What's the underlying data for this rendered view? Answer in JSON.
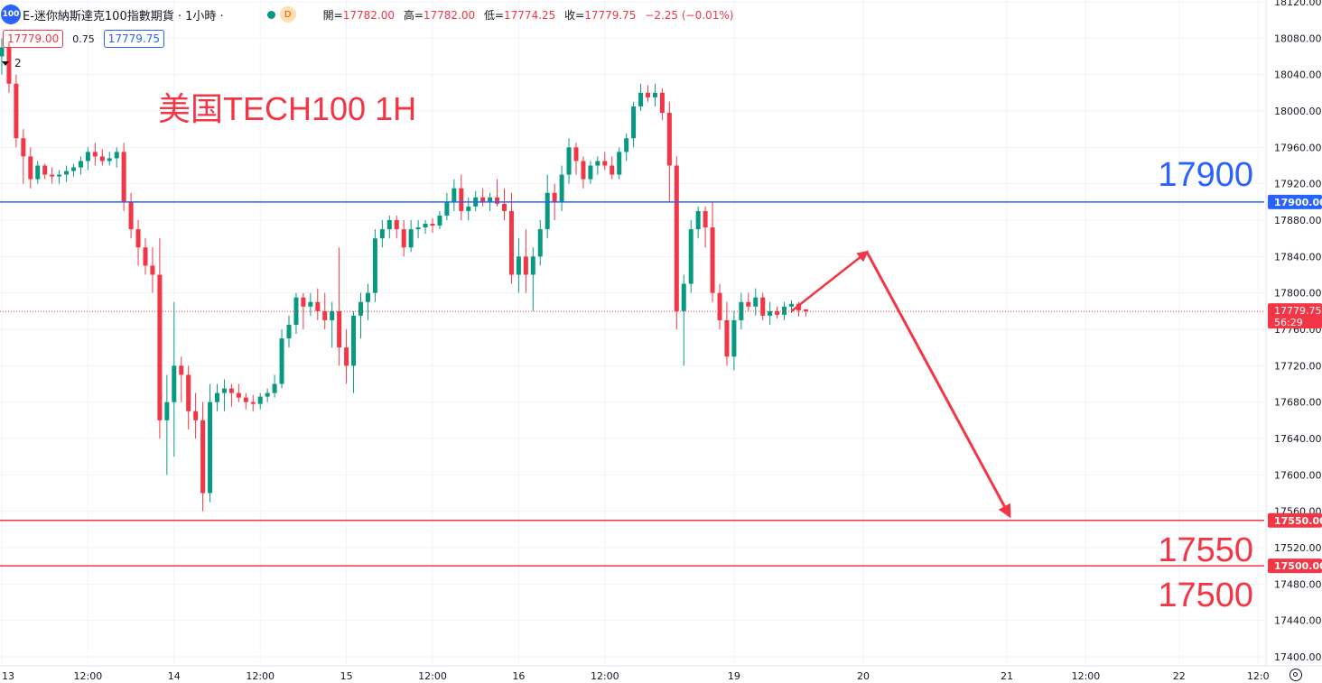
{
  "header": {
    "logo_text": "100",
    "title": "E-迷你納斯達克100指數期貨 · 1小時 ·",
    "status_badge": "D",
    "ohlc": {
      "open_label": "開=",
      "open": "17782.00",
      "high_label": "高=",
      "high": "17782.00",
      "low_label": "低=",
      "low": "17774.25",
      "close_label": "收=",
      "close": "17779.75",
      "change": "−2.25 (−0.01%)"
    }
  },
  "quote": {
    "bid": "17779.00",
    "spread": "0.75",
    "ask": "17779.75"
  },
  "indicators": {
    "count": "2"
  },
  "colors": {
    "up": "#089981",
    "down": "#f23645",
    "blue": "#2962ff",
    "red": "#f23645",
    "grid": "#f0f3fa"
  },
  "chart_data": {
    "type": "candlestick",
    "title": "美国TECH100 1H",
    "timeframe": "1H",
    "ylim": [
      17400,
      18120
    ],
    "y_ticks": [
      17400,
      17440,
      17480,
      17520,
      17560,
      17600,
      17640,
      17680,
      17720,
      17760,
      17800,
      17840,
      17880,
      17920,
      17960,
      18000,
      18040,
      18080,
      18120
    ],
    "y_tick_labels": [
      "17400.00",
      "17440.00",
      "17480.00",
      "17520.00",
      "17560.00",
      "17600.00",
      "17640.00",
      "17680.00",
      "17720.00",
      "17760.00",
      "17800.00",
      "17840.00",
      "17880.00",
      "17920.00",
      "17960.00",
      "18000.00",
      "18040.00",
      "18080.00",
      "18120.00"
    ],
    "x_labels": [
      {
        "label": "13",
        "bar": 0
      },
      {
        "label": "12:00",
        "bar": 12
      },
      {
        "label": "14",
        "bar": 24
      },
      {
        "label": "12:00",
        "bar": 36
      },
      {
        "label": "15",
        "bar": 48
      },
      {
        "label": "12:00",
        "bar": 60
      },
      {
        "label": "16",
        "bar": 72
      },
      {
        "label": "12:00",
        "bar": 84
      },
      {
        "label": "19",
        "bar": 102
      },
      {
        "label": "20",
        "bar": 120
      },
      {
        "label": "21",
        "bar": 140
      },
      {
        "label": "12:00",
        "bar": 151
      },
      {
        "label": "22",
        "bar": 164
      },
      {
        "label": "12:0",
        "bar": 175
      }
    ],
    "bar_origin_bar0": 2,
    "bar_spacing_hint": "hourly",
    "candles": [
      [
        18060,
        18080,
        18040,
        18070
      ],
      [
        18070,
        18075,
        18020,
        18030
      ],
      [
        18030,
        18040,
        17960,
        17970
      ],
      [
        17970,
        17980,
        17920,
        17950
      ],
      [
        17950,
        17960,
        17915,
        17925
      ],
      [
        17925,
        17945,
        17920,
        17940
      ],
      [
        17940,
        17942,
        17925,
        17930
      ],
      [
        17930,
        17938,
        17920,
        17928
      ],
      [
        17928,
        17935,
        17920,
        17930
      ],
      [
        17930,
        17940,
        17922,
        17934
      ],
      [
        17934,
        17942,
        17928,
        17938
      ],
      [
        17938,
        17950,
        17930,
        17945
      ],
      [
        17945,
        17960,
        17935,
        17955
      ],
      [
        17955,
        17965,
        17940,
        17950
      ],
      [
        17950,
        17958,
        17940,
        17945
      ],
      [
        17945,
        17955,
        17940,
        17948
      ],
      [
        17948,
        17960,
        17938,
        17955
      ],
      [
        17955,
        17965,
        17890,
        17900
      ],
      [
        17900,
        17910,
        17860,
        17870
      ],
      [
        17870,
        17880,
        17830,
        17850
      ],
      [
        17850,
        17860,
        17820,
        17830
      ],
      [
        17830,
        17850,
        17800,
        17820
      ],
      [
        17820,
        17860,
        17640,
        17660
      ],
      [
        17660,
        17710,
        17600,
        17680
      ],
      [
        17680,
        17790,
        17620,
        17720
      ],
      [
        17720,
        17730,
        17680,
        17710
      ],
      [
        17710,
        17720,
        17650,
        17670
      ],
      [
        17670,
        17690,
        17640,
        17660
      ],
      [
        17660,
        17680,
        17560,
        17580
      ],
      [
        17580,
        17700,
        17570,
        17680
      ],
      [
        17680,
        17700,
        17670,
        17690
      ],
      [
        17690,
        17705,
        17670,
        17695
      ],
      [
        17695,
        17700,
        17675,
        17690
      ],
      [
        17690,
        17700,
        17680,
        17685
      ],
      [
        17685,
        17690,
        17672,
        17680
      ],
      [
        17680,
        17688,
        17670,
        17678
      ],
      [
        17678,
        17690,
        17672,
        17686
      ],
      [
        17686,
        17695,
        17680,
        17690
      ],
      [
        17690,
        17710,
        17685,
        17700
      ],
      [
        17700,
        17760,
        17695,
        17750
      ],
      [
        17750,
        17775,
        17740,
        17765
      ],
      [
        17765,
        17800,
        17755,
        17795
      ],
      [
        17795,
        17800,
        17760,
        17785
      ],
      [
        17785,
        17800,
        17775,
        17790
      ],
      [
        17790,
        17805,
        17770,
        17780
      ],
      [
        17780,
        17800,
        17760,
        17770
      ],
      [
        17770,
        17790,
        17740,
        17780
      ],
      [
        17780,
        17850,
        17720,
        17740
      ],
      [
        17740,
        17760,
        17700,
        17720
      ],
      [
        17720,
        17780,
        17690,
        17775
      ],
      [
        17775,
        17800,
        17750,
        17790
      ],
      [
        17790,
        17810,
        17770,
        17800
      ],
      [
        17800,
        17870,
        17790,
        17860
      ],
      [
        17860,
        17880,
        17850,
        17870
      ],
      [
        17870,
        17885,
        17860,
        17880
      ],
      [
        17880,
        17885,
        17860,
        17870
      ],
      [
        17870,
        17880,
        17840,
        17850
      ],
      [
        17850,
        17880,
        17845,
        17870
      ],
      [
        17870,
        17880,
        17860,
        17872
      ],
      [
        17872,
        17880,
        17865,
        17876
      ],
      [
        17876,
        17882,
        17866,
        17874
      ],
      [
        17874,
        17890,
        17870,
        17885
      ],
      [
        17885,
        17910,
        17880,
        17900
      ],
      [
        17900,
        17925,
        17890,
        17915
      ],
      [
        17915,
        17930,
        17880,
        17890
      ],
      [
        17890,
        17905,
        17880,
        17895
      ],
      [
        17895,
        17912,
        17890,
        17905
      ],
      [
        17905,
        17915,
        17895,
        17900
      ],
      [
        17900,
        17910,
        17890,
        17905
      ],
      [
        17905,
        17925,
        17895,
        17898
      ],
      [
        17898,
        17915,
        17880,
        17890
      ],
      [
        17890,
        17910,
        17810,
        17820
      ],
      [
        17820,
        17860,
        17800,
        17840
      ],
      [
        17840,
        17870,
        17800,
        17820
      ],
      [
        17820,
        17850,
        17780,
        17840
      ],
      [
        17840,
        17880,
        17830,
        17870
      ],
      [
        17870,
        17930,
        17860,
        17910
      ],
      [
        17910,
        17920,
        17880,
        17900
      ],
      [
        17900,
        17940,
        17890,
        17930
      ],
      [
        17930,
        17970,
        17920,
        17960
      ],
      [
        17960,
        17965,
        17930,
        17945
      ],
      [
        17945,
        17950,
        17915,
        17925
      ],
      [
        17925,
        17945,
        17920,
        17940
      ],
      [
        17940,
        17950,
        17930,
        17945
      ],
      [
        17945,
        17955,
        17935,
        17940
      ],
      [
        17940,
        17950,
        17925,
        17930
      ],
      [
        17930,
        17960,
        17925,
        17955
      ],
      [
        17955,
        17975,
        17945,
        17970
      ],
      [
        17970,
        18010,
        17960,
        18005
      ],
      [
        18005,
        18030,
        18000,
        18020
      ],
      [
        18020,
        18028,
        18010,
        18015
      ],
      [
        18015,
        18030,
        18005,
        18020
      ],
      [
        18020,
        18025,
        17990,
        17998
      ],
      [
        17998,
        18010,
        17900,
        17940
      ],
      [
        17940,
        17950,
        17760,
        17780
      ],
      [
        17780,
        17820,
        17720,
        17810
      ],
      [
        17810,
        17880,
        17800,
        17870
      ],
      [
        17870,
        17895,
        17860,
        17890
      ],
      [
        17890,
        17895,
        17850,
        17872
      ],
      [
        17872,
        17900,
        17790,
        17800
      ],
      [
        17800,
        17810,
        17760,
        17770
      ],
      [
        17770,
        17790,
        17720,
        17730
      ],
      [
        17730,
        17780,
        17715,
        17770
      ],
      [
        17770,
        17800,
        17760,
        17790
      ],
      [
        17790,
        17800,
        17780,
        17785
      ],
      [
        17785,
        17805,
        17775,
        17795
      ],
      [
        17795,
        17800,
        17770,
        17775
      ],
      [
        17775,
        17790,
        17765,
        17780
      ],
      [
        17780,
        17785,
        17772,
        17776
      ],
      [
        17776,
        17790,
        17770,
        17785
      ],
      [
        17785,
        17792,
        17778,
        17788
      ],
      [
        17788,
        17790,
        17774,
        17781
      ],
      [
        17782,
        17782,
        17774.25,
        17779.75
      ]
    ],
    "horizontal_lines": [
      {
        "name": "resistance-17900",
        "value": 17900,
        "axis_label": "17900.00",
        "text": "17900",
        "color": "#2962ff"
      },
      {
        "name": "support-17550",
        "value": 17550,
        "axis_label": "17550.00",
        "text": "17550",
        "color": "#f23645"
      },
      {
        "name": "support-17500",
        "value": 17500,
        "axis_label": "17500.00",
        "text": "17500",
        "color": "#f23645"
      }
    ],
    "last_price": {
      "value": 17779.75,
      "label": "17779.75",
      "countdown": "56:29"
    },
    "projection": {
      "points": [
        {
          "bar": 110,
          "value": 17780
        },
        {
          "bar": 118,
          "value": 17845
        },
        {
          "bar": 130,
          "value": 17555
        }
      ],
      "color": "#f23645"
    }
  }
}
